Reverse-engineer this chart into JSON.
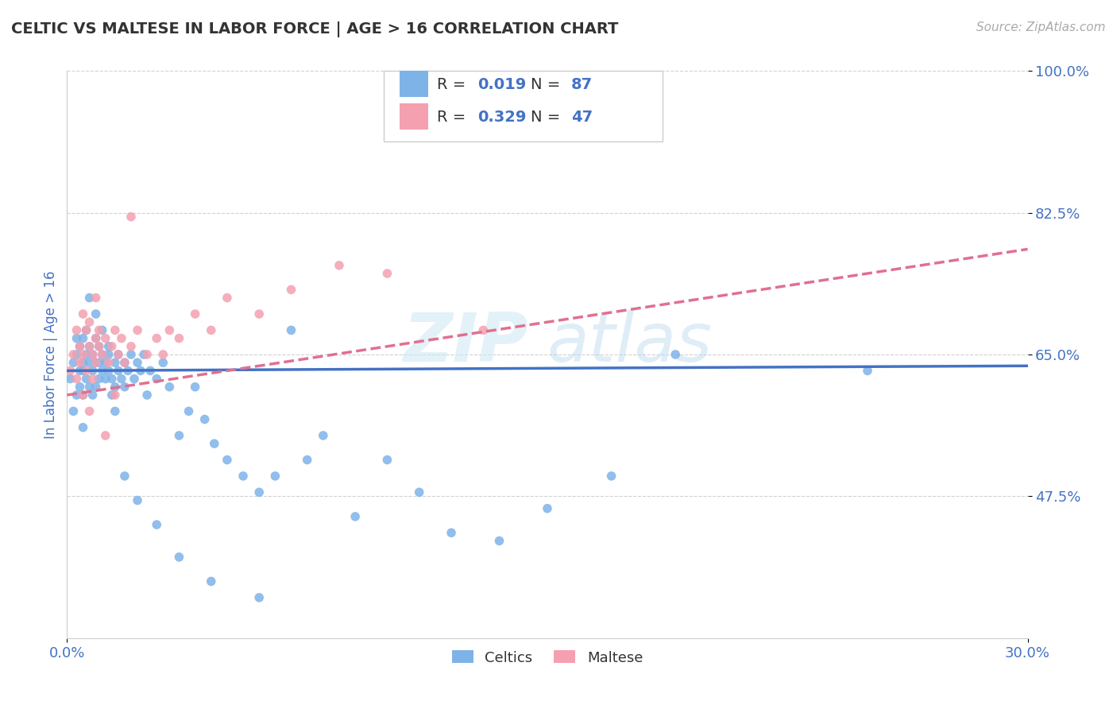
{
  "title": "CELTIC VS MALTESE IN LABOR FORCE | AGE > 16 CORRELATION CHART",
  "source_text": "Source: ZipAtlas.com",
  "ylabel": "In Labor Force | Age > 16",
  "xlim": [
    0.0,
    0.3
  ],
  "ylim": [
    0.3,
    1.0
  ],
  "yticks": [
    0.475,
    0.65,
    0.825,
    1.0
  ],
  "ytick_labels": [
    "47.5%",
    "65.0%",
    "82.5%",
    "100.0%"
  ],
  "xticks": [
    0.0,
    0.3
  ],
  "xtick_labels": [
    "0.0%",
    "30.0%"
  ],
  "celtic_color": "#7eb3e8",
  "maltese_color": "#f4a0b0",
  "celtic_line_color": "#4472c4",
  "maltese_line_color": "#e07090",
  "watermark": "ZIPatlas",
  "legend_R_celtic": "0.019",
  "legend_N_celtic": "87",
  "legend_R_maltese": "0.329",
  "legend_N_maltese": "47",
  "celtic_x": [
    0.001,
    0.002,
    0.002,
    0.003,
    0.003,
    0.003,
    0.004,
    0.004,
    0.004,
    0.005,
    0.005,
    0.005,
    0.005,
    0.006,
    0.006,
    0.006,
    0.007,
    0.007,
    0.007,
    0.008,
    0.008,
    0.008,
    0.009,
    0.009,
    0.009,
    0.01,
    0.01,
    0.01,
    0.011,
    0.011,
    0.012,
    0.012,
    0.013,
    0.013,
    0.014,
    0.014,
    0.015,
    0.015,
    0.016,
    0.016,
    0.017,
    0.018,
    0.018,
    0.019,
    0.02,
    0.021,
    0.022,
    0.023,
    0.024,
    0.025,
    0.026,
    0.028,
    0.03,
    0.032,
    0.035,
    0.038,
    0.04,
    0.043,
    0.046,
    0.05,
    0.055,
    0.06,
    0.065,
    0.07,
    0.075,
    0.08,
    0.09,
    0.1,
    0.11,
    0.12,
    0.135,
    0.15,
    0.17,
    0.19,
    0.005,
    0.007,
    0.009,
    0.011,
    0.013,
    0.015,
    0.018,
    0.022,
    0.028,
    0.035,
    0.045,
    0.06,
    0.25
  ],
  "celtic_y": [
    0.62,
    0.64,
    0.58,
    0.65,
    0.6,
    0.67,
    0.63,
    0.66,
    0.61,
    0.64,
    0.67,
    0.6,
    0.63,
    0.65,
    0.62,
    0.68,
    0.64,
    0.61,
    0.66,
    0.63,
    0.65,
    0.6,
    0.64,
    0.67,
    0.61,
    0.64,
    0.62,
    0.66,
    0.63,
    0.65,
    0.62,
    0.64,
    0.63,
    0.65,
    0.62,
    0.6,
    0.64,
    0.61,
    0.63,
    0.65,
    0.62,
    0.64,
    0.61,
    0.63,
    0.65,
    0.62,
    0.64,
    0.63,
    0.65,
    0.6,
    0.63,
    0.62,
    0.64,
    0.61,
    0.55,
    0.58,
    0.61,
    0.57,
    0.54,
    0.52,
    0.5,
    0.48,
    0.5,
    0.68,
    0.52,
    0.55,
    0.45,
    0.52,
    0.48,
    0.43,
    0.42,
    0.46,
    0.5,
    0.65,
    0.56,
    0.72,
    0.7,
    0.68,
    0.66,
    0.58,
    0.5,
    0.47,
    0.44,
    0.4,
    0.37,
    0.35,
    0.63
  ],
  "maltese_x": [
    0.001,
    0.002,
    0.003,
    0.003,
    0.004,
    0.004,
    0.005,
    0.005,
    0.006,
    0.006,
    0.007,
    0.007,
    0.008,
    0.008,
    0.009,
    0.009,
    0.01,
    0.01,
    0.011,
    0.012,
    0.013,
    0.014,
    0.015,
    0.016,
    0.017,
    0.018,
    0.02,
    0.022,
    0.025,
    0.028,
    0.03,
    0.032,
    0.035,
    0.04,
    0.045,
    0.05,
    0.06,
    0.07,
    0.085,
    0.1,
    0.005,
    0.007,
    0.009,
    0.012,
    0.015,
    0.02,
    0.13
  ],
  "maltese_y": [
    0.63,
    0.65,
    0.68,
    0.62,
    0.66,
    0.64,
    0.7,
    0.65,
    0.68,
    0.63,
    0.66,
    0.69,
    0.65,
    0.62,
    0.67,
    0.64,
    0.66,
    0.68,
    0.65,
    0.67,
    0.64,
    0.66,
    0.68,
    0.65,
    0.67,
    0.64,
    0.66,
    0.68,
    0.65,
    0.67,
    0.65,
    0.68,
    0.67,
    0.7,
    0.68,
    0.72,
    0.7,
    0.73,
    0.76,
    0.75,
    0.6,
    0.58,
    0.72,
    0.55,
    0.6,
    0.82,
    0.68
  ],
  "celtic_line_y0": 0.63,
  "celtic_line_y1": 0.636,
  "maltese_line_y0": 0.6,
  "maltese_line_y1": 0.78,
  "background_color": "#ffffff",
  "grid_color": "#cccccc",
  "title_color": "#333333",
  "axis_label_color": "#4472c4",
  "tick_color": "#4472c4"
}
